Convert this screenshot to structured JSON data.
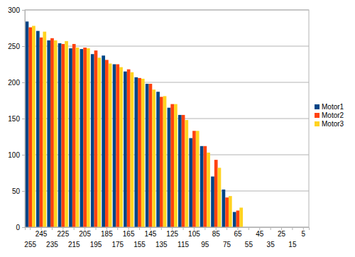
{
  "chart_data": {
    "type": "bar",
    "categories": [
      "255",
      "245",
      "235",
      "225",
      "215",
      "205",
      "195",
      "185",
      "175",
      "165",
      "155",
      "145",
      "135",
      "125",
      "115",
      "105",
      "95",
      "85",
      "75",
      "65",
      "55",
      "45",
      "35",
      "25",
      "15",
      "5"
    ],
    "series": [
      {
        "name": "Motor1",
        "color": "#004586",
        "values": [
          284,
          271,
          258,
          254,
          247,
          246,
          239,
          237,
          225,
          215,
          207,
          198,
          187,
          165,
          155,
          123,
          112,
          70,
          52,
          21,
          null,
          null,
          null,
          null,
          null,
          null
        ]
      },
      {
        "name": "Motor2",
        "color": "#ff420e",
        "values": [
          276,
          262,
          261,
          253,
          253,
          248,
          244,
          231,
          225,
          218,
          206,
          198,
          180,
          170,
          155,
          133,
          112,
          93,
          41,
          23,
          null,
          null,
          null,
          null,
          null,
          null
        ]
      },
      {
        "name": "Motor3",
        "color": "#ffd320",
        "values": [
          278,
          270,
          258,
          257,
          248,
          247,
          234,
          226,
          221,
          214,
          205,
          190,
          181,
          170,
          148,
          133,
          103,
          82,
          43,
          27,
          null,
          null,
          null,
          null,
          null,
          null
        ]
      }
    ],
    "ylim": [
      0,
      300
    ],
    "yticks": [
      0,
      50,
      100,
      150,
      200,
      250,
      300
    ],
    "grid": true,
    "legend": "right"
  }
}
